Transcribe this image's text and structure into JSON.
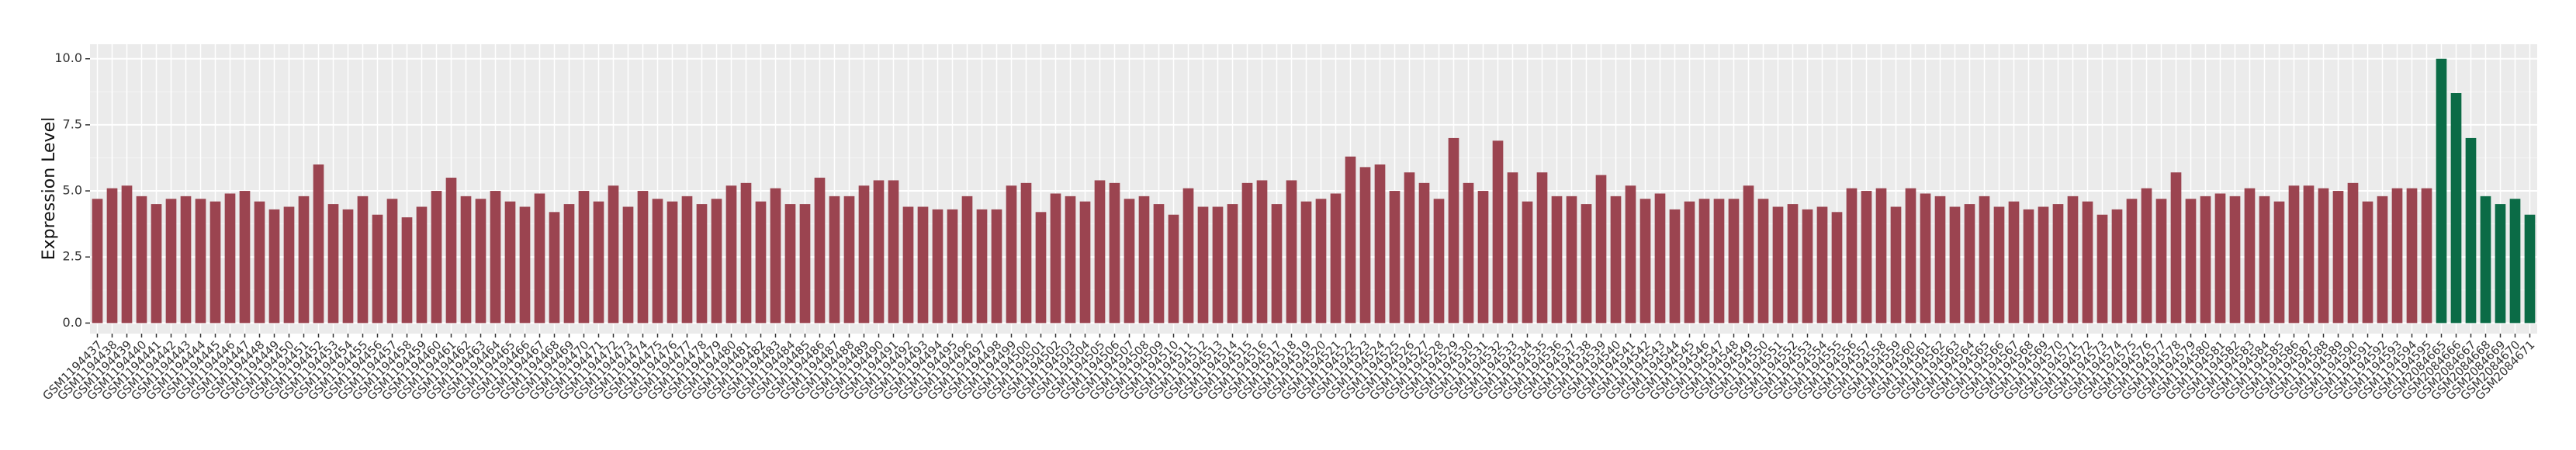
{
  "chart_data": {
    "type": "bar",
    "y_label": "Expression Level",
    "categories": [
      "GSM1194437",
      "GSM1194438",
      "GSM1194439",
      "GSM1194440",
      "GSM1194441",
      "GSM1194442",
      "GSM1194443",
      "GSM1194444",
      "GSM1194445",
      "GSM1194446",
      "GSM1194447",
      "GSM1194448",
      "GSM1194449",
      "GSM1194450",
      "GSM1194451",
      "GSM1194452",
      "GSM1194453",
      "GSM1194454",
      "GSM1194455",
      "GSM1194456",
      "GSM1194457",
      "GSM1194458",
      "GSM1194459",
      "GSM1194460",
      "GSM1194461",
      "GSM1194462",
      "GSM1194463",
      "GSM1194464",
      "GSM1194465",
      "GSM1194466",
      "GSM1194467",
      "GSM1194468",
      "GSM1194469",
      "GSM1194470",
      "GSM1194471",
      "GSM1194472",
      "GSM1194473",
      "GSM1194474",
      "GSM1194475",
      "GSM1194476",
      "GSM1194477",
      "GSM1194478",
      "GSM1194479",
      "GSM1194480",
      "GSM1194481",
      "GSM1194482",
      "GSM1194483",
      "GSM1194484",
      "GSM1194485",
      "GSM1194486",
      "GSM1194487",
      "GSM1194488",
      "GSM1194489",
      "GSM1194490",
      "GSM1194491",
      "GSM1194492",
      "GSM1194493",
      "GSM1194494",
      "GSM1194495",
      "GSM1194496",
      "GSM1194497",
      "GSM1194498",
      "GSM1194499",
      "GSM1194500",
      "GSM1194501",
      "GSM1194502",
      "GSM1194503",
      "GSM1194504",
      "GSM1194505",
      "GSM1194506",
      "GSM1194507",
      "GSM1194508",
      "GSM1194509",
      "GSM1194510",
      "GSM1194511",
      "GSM1194512",
      "GSM1194513",
      "GSM1194514",
      "GSM1194515",
      "GSM1194516",
      "GSM1194517",
      "GSM1194518",
      "GSM1194519",
      "GSM1194520",
      "GSM1194521",
      "GSM1194522",
      "GSM1194523",
      "GSM1194524",
      "GSM1194525",
      "GSM1194526",
      "GSM1194527",
      "GSM1194528",
      "GSM1194529",
      "GSM1194530",
      "GSM1194531",
      "GSM1194532",
      "GSM1194533",
      "GSM1194534",
      "GSM1194535",
      "GSM1194536",
      "GSM1194537",
      "GSM1194538",
      "GSM1194539",
      "GSM1194540",
      "GSM1194541",
      "GSM1194542",
      "GSM1194543",
      "GSM1194544",
      "GSM1194545",
      "GSM1194546",
      "GSM1194547",
      "GSM1194548",
      "GSM1194549",
      "GSM1194550",
      "GSM1194551",
      "GSM1194552",
      "GSM1194553",
      "GSM1194554",
      "GSM1194555",
      "GSM1194556",
      "GSM1194557",
      "GSM1194558",
      "GSM1194559",
      "GSM1194560",
      "GSM1194561",
      "GSM1194562",
      "GSM1194563",
      "GSM1194564",
      "GSM1194565",
      "GSM1194566",
      "GSM1194567",
      "GSM1194568",
      "GSM1194569",
      "GSM1194570",
      "GSM1194571",
      "GSM1194572",
      "GSM1194573",
      "GSM1194574",
      "GSM1194575",
      "GSM1194576",
      "GSM1194577",
      "GSM1194578",
      "GSM1194579",
      "GSM1194580",
      "GSM1194581",
      "GSM1194582",
      "GSM1194583",
      "GSM1194584",
      "GSM1194585",
      "GSM1194586",
      "GSM1194587",
      "GSM1194588",
      "GSM1194589",
      "GSM1194590",
      "GSM1194591",
      "GSM1194592",
      "GSM1194593",
      "GSM1194594",
      "GSM1194595",
      "GSM2084665",
      "GSM2084666",
      "GSM2084667",
      "GSM2084668",
      "GSM2084669",
      "GSM2084670",
      "GSM2084671"
    ],
    "values": [
      4.7,
      5.1,
      5.2,
      4.8,
      4.5,
      4.7,
      4.8,
      4.7,
      4.6,
      4.9,
      5.0,
      4.6,
      4.3,
      4.4,
      4.8,
      6.0,
      4.5,
      4.3,
      4.8,
      4.1,
      4.7,
      4.0,
      4.4,
      5.0,
      5.5,
      4.8,
      4.7,
      5.0,
      4.6,
      4.4,
      4.9,
      4.2,
      4.5,
      5.0,
      4.6,
      5.2,
      4.4,
      5.0,
      4.7,
      4.6,
      4.8,
      4.5,
      4.7,
      5.2,
      5.3,
      4.6,
      5.1,
      4.5,
      4.5,
      5.5,
      4.8,
      4.8,
      5.2,
      5.4,
      5.4,
      4.4,
      4.4,
      4.3,
      4.3,
      4.8,
      4.3,
      4.3,
      5.2,
      5.3,
      4.2,
      4.9,
      4.8,
      4.6,
      5.4,
      5.3,
      4.7,
      4.8,
      4.5,
      4.1,
      5.1,
      4.4,
      4.4,
      4.5,
      5.3,
      5.4,
      4.5,
      5.4,
      4.6,
      4.7,
      4.9,
      6.3,
      5.9,
      6.0,
      5.0,
      5.7,
      5.3,
      4.7,
      7.0,
      5.3,
      5.0,
      6.9,
      5.7,
      4.6,
      5.7,
      4.8,
      4.8,
      4.5,
      5.6,
      4.8,
      5.2,
      4.7,
      4.9,
      4.3,
      4.6,
      4.7,
      4.7,
      4.7,
      5.2,
      4.7,
      4.4,
      4.5,
      4.3,
      4.4,
      4.2,
      5.1,
      5.0,
      5.1,
      4.4,
      5.1,
      4.9,
      4.8,
      4.4,
      4.5,
      4.8,
      4.4,
      4.6,
      4.3,
      4.4,
      4.5,
      4.8,
      4.6,
      4.1,
      4.3,
      4.7,
      5.1,
      4.7,
      5.7,
      4.7,
      4.8,
      4.9,
      4.8,
      5.1,
      4.8,
      4.6,
      5.2,
      5.2,
      5.1,
      5.0,
      5.3,
      4.6,
      4.8,
      5.1,
      5.1,
      5.1,
      10.0,
      8.7,
      7.0,
      4.8,
      4.5,
      4.7,
      4.1
    ],
    "colors": [
      "#9b4450",
      "#9b4450",
      "#9b4450",
      "#9b4450",
      "#9b4450",
      "#9b4450",
      "#9b4450",
      "#9b4450",
      "#9b4450",
      "#9b4450",
      "#9b4450",
      "#9b4450",
      "#9b4450",
      "#9b4450",
      "#9b4450",
      "#9b4450",
      "#9b4450",
      "#9b4450",
      "#9b4450",
      "#9b4450",
      "#9b4450",
      "#9b4450",
      "#9b4450",
      "#9b4450",
      "#9b4450",
      "#9b4450",
      "#9b4450",
      "#9b4450",
      "#9b4450",
      "#9b4450",
      "#9b4450",
      "#9b4450",
      "#9b4450",
      "#9b4450",
      "#9b4450",
      "#9b4450",
      "#9b4450",
      "#9b4450",
      "#9b4450",
      "#9b4450",
      "#9b4450",
      "#9b4450",
      "#9b4450",
      "#9b4450",
      "#9b4450",
      "#9b4450",
      "#9b4450",
      "#9b4450",
      "#9b4450",
      "#9b4450",
      "#9b4450",
      "#9b4450",
      "#9b4450",
      "#9b4450",
      "#9b4450",
      "#9b4450",
      "#9b4450",
      "#9b4450",
      "#9b4450",
      "#9b4450",
      "#9b4450",
      "#9b4450",
      "#9b4450",
      "#9b4450",
      "#9b4450",
      "#9b4450",
      "#9b4450",
      "#9b4450",
      "#9b4450",
      "#9b4450",
      "#9b4450",
      "#9b4450",
      "#9b4450",
      "#9b4450",
      "#9b4450",
      "#9b4450",
      "#9b4450",
      "#9b4450",
      "#9b4450",
      "#9b4450",
      "#9b4450",
      "#9b4450",
      "#9b4450",
      "#9b4450",
      "#9b4450",
      "#9b4450",
      "#9b4450",
      "#9b4450",
      "#9b4450",
      "#9b4450",
      "#9b4450",
      "#9b4450",
      "#9b4450",
      "#9b4450",
      "#9b4450",
      "#9b4450",
      "#9b4450",
      "#9b4450",
      "#9b4450",
      "#9b4450",
      "#9b4450",
      "#9b4450",
      "#9b4450",
      "#9b4450",
      "#9b4450",
      "#9b4450",
      "#9b4450",
      "#9b4450",
      "#9b4450",
      "#9b4450",
      "#9b4450",
      "#9b4450",
      "#9b4450",
      "#9b4450",
      "#9b4450",
      "#9b4450",
      "#9b4450",
      "#9b4450",
      "#9b4450",
      "#9b4450",
      "#9b4450",
      "#9b4450",
      "#9b4450",
      "#9b4450",
      "#9b4450",
      "#9b4450",
      "#9b4450",
      "#9b4450",
      "#9b4450",
      "#9b4450",
      "#9b4450",
      "#9b4450",
      "#9b4450",
      "#9b4450",
      "#9b4450",
      "#9b4450",
      "#9b4450",
      "#9b4450",
      "#9b4450",
      "#9b4450",
      "#9b4450",
      "#9b4450",
      "#9b4450",
      "#9b4450",
      "#9b4450",
      "#9b4450",
      "#9b4450",
      "#9b4450",
      "#9b4450",
      "#9b4450",
      "#9b4450",
      "#9b4450",
      "#9b4450",
      "#9b4450",
      "#9b4450",
      "#9b4450",
      "#9b4450",
      "#9b4450",
      "#9b4450",
      "#0b6b46",
      "#0b6b46",
      "#0b6b46",
      "#0b6b46",
      "#0b6b46",
      "#0b6b46",
      "#0b6b46"
    ],
    "ylim": [
      -0.4,
      10.55
    ],
    "yticks": [
      {
        "value": 0,
        "label": "0.0"
      },
      {
        "value": 2.5,
        "label": "2.5"
      },
      {
        "value": 5,
        "label": "5.0"
      },
      {
        "value": 7.5,
        "label": "7.5"
      },
      {
        "value": 10,
        "label": "10.0"
      }
    ],
    "grid": true
  }
}
